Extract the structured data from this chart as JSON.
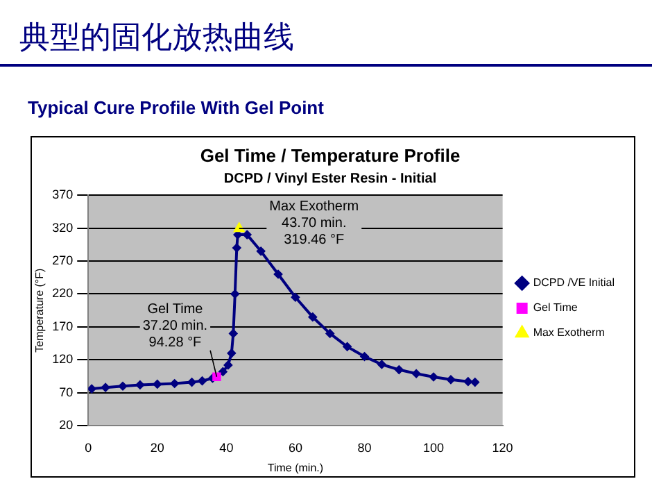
{
  "chart_data": {
    "type": "line",
    "title": "Gel Time / Temperature Profile",
    "subtitle": "DCPD / Vinyl Ester Resin - Initial",
    "xlabel": "Time (min.)",
    "ylabel": "Temperature (°F)",
    "annotations": [
      "典型的固化放热曲线",
      "Typical Cure Profile With Gel Point",
      {
        "text": "Gel Time\n37.20 min.\n94.28 °F",
        "x": 37.2,
        "y": 94.28
      },
      {
        "text": "Max Exotherm\n43.70 min.\n319.46 °F",
        "x": 43.7,
        "y": 319.46
      }
    ],
    "series": [
      {
        "name": "DCPD /VE Initial",
        "color": "#000080",
        "marker": "diamond",
        "x": [
          1,
          5,
          10,
          15,
          20,
          25,
          30,
          33,
          36,
          39,
          40.5,
          41.5,
          42,
          42.5,
          43,
          43.3,
          46,
          50,
          55,
          60,
          65,
          70,
          75,
          80,
          85,
          90,
          95,
          100,
          105,
          110,
          112
        ],
        "values": [
          76,
          78,
          80,
          82,
          83,
          84,
          86,
          88,
          92,
          102,
          112,
          130,
          160,
          220,
          290,
          310,
          310,
          285,
          250,
          215,
          185,
          160,
          140,
          125,
          113,
          105,
          99,
          94,
          90,
          87,
          86
        ]
      },
      {
        "name": "Gel Time",
        "color": "#ff00ff",
        "marker": "square",
        "x": [
          37.2
        ],
        "values": [
          94.28
        ]
      },
      {
        "name": "Max Exotherm",
        "color": "#ffff00",
        "marker": "triangle",
        "x": [
          43.7
        ],
        "values": [
          319.46
        ]
      }
    ],
    "xlim": [
      0,
      120
    ],
    "xticks": [
      0,
      20,
      40,
      60,
      80,
      100,
      120
    ],
    "ylim": [
      20,
      370
    ],
    "yticks": [
      20,
      70,
      120,
      170,
      220,
      270,
      320,
      370
    ],
    "grid": "y",
    "legend": "right"
  }
}
